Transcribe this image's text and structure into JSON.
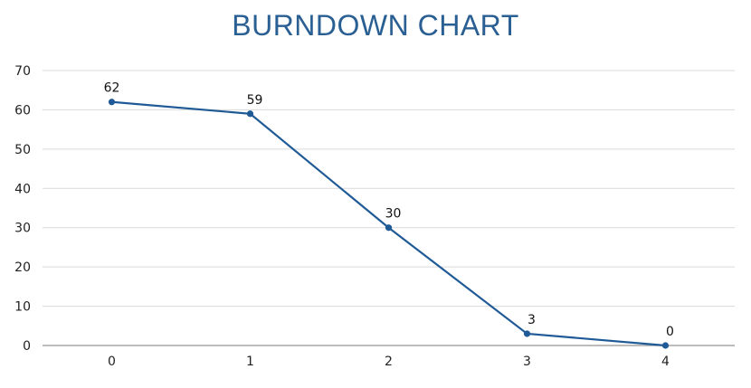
{
  "chart_data": {
    "type": "line",
    "title": "BURNDOWN CHART",
    "x": [
      0,
      1,
      2,
      3,
      4
    ],
    "categories": [
      "0",
      "1",
      "2",
      "3",
      "4"
    ],
    "series": [
      {
        "values": [
          62,
          59,
          30,
          3,
          0
        ],
        "color": "#1f5a96"
      }
    ],
    "data_labels": [
      "62",
      "59",
      "30",
      "3",
      "0"
    ],
    "yticks": [
      "0",
      "10",
      "20",
      "30",
      "40",
      "50",
      "60",
      "70"
    ],
    "ylim": [
      0,
      70
    ],
    "grid": true,
    "legend": "none"
  }
}
